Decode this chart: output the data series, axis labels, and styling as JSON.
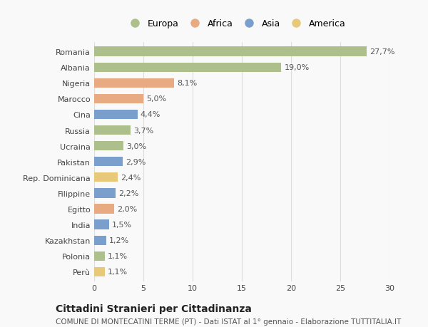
{
  "categories": [
    "Perù",
    "Polonia",
    "Kazakhstan",
    "India",
    "Egitto",
    "Filippine",
    "Rep. Dominicana",
    "Pakistan",
    "Ucraina",
    "Russia",
    "Cina",
    "Marocco",
    "Nigeria",
    "Albania",
    "Romania"
  ],
  "values": [
    1.1,
    1.1,
    1.2,
    1.5,
    2.0,
    2.2,
    2.4,
    2.9,
    3.0,
    3.7,
    4.4,
    5.0,
    8.1,
    19.0,
    27.7
  ],
  "labels": [
    "1,1%",
    "1,1%",
    "1,2%",
    "1,5%",
    "2,0%",
    "2,2%",
    "2,4%",
    "2,9%",
    "3,0%",
    "3,7%",
    "4,4%",
    "5,0%",
    "8,1%",
    "19,0%",
    "27,7%"
  ],
  "colors": [
    "#e8c97a",
    "#adbf8a",
    "#7b9fcc",
    "#7b9fcc",
    "#e8aa80",
    "#7b9fcc",
    "#e8c97a",
    "#7b9fcc",
    "#adbf8a",
    "#adbf8a",
    "#7b9fcc",
    "#e8aa80",
    "#e8aa80",
    "#adbf8a",
    "#adbf8a"
  ],
  "legend_labels": [
    "Europa",
    "Africa",
    "Asia",
    "America"
  ],
  "legend_colors": [
    "#adbf8a",
    "#e8aa80",
    "#7b9fcc",
    "#e8c97a"
  ],
  "title": "Cittadini Stranieri per Cittadinanza",
  "subtitle": "COMUNE DI MONTECATINI TERME (PT) - Dati ISTAT al 1° gennaio - Elaborazione TUTTITALIA.IT",
  "xlim": [
    0,
    30
  ],
  "xticks": [
    0,
    5,
    10,
    15,
    20,
    25,
    30
  ],
  "background_color": "#f9f9f9",
  "bar_height": 0.6,
  "grid_color": "#dddddd",
  "title_fontsize": 10,
  "subtitle_fontsize": 7.5,
  "tick_fontsize": 8,
  "label_fontsize": 8
}
